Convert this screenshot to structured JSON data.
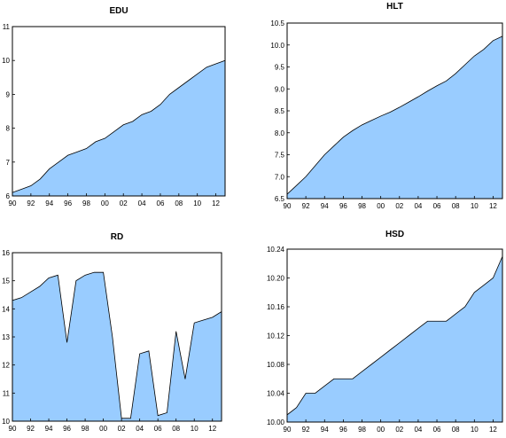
{
  "chart_data": [
    {
      "type": "area",
      "title": "EDU",
      "x": [
        1990,
        1991,
        1992,
        1993,
        1994,
        1995,
        1996,
        1997,
        1998,
        1999,
        2000,
        2001,
        2002,
        2003,
        2004,
        2005,
        2006,
        2007,
        2008,
        2009,
        2010,
        2011,
        2012,
        2013
      ],
      "values": [
        6.1,
        6.2,
        6.3,
        6.5,
        6.8,
        7.0,
        7.2,
        7.3,
        7.4,
        7.6,
        7.7,
        7.9,
        8.1,
        8.2,
        8.4,
        8.5,
        8.7,
        9.0,
        9.2,
        9.4,
        9.6,
        9.8,
        9.9,
        10.0
      ],
      "ylim": [
        6,
        11
      ],
      "yticks": [
        6,
        7,
        8,
        9,
        10,
        11
      ],
      "ytick_labels": [
        "6",
        "7",
        "8",
        "9",
        "10",
        "11"
      ],
      "xticks": [
        1990,
        1992,
        1994,
        1996,
        1998,
        2000,
        2002,
        2004,
        2006,
        2008,
        2010,
        2012
      ],
      "xtick_labels": [
        "90",
        "92",
        "94",
        "96",
        "98",
        "00",
        "02",
        "04",
        "06",
        "08",
        "10",
        "12"
      ],
      "xlim": [
        1990,
        2013
      ],
      "color": "#99ccff"
    },
    {
      "type": "area",
      "title": "HLT",
      "x": [
        1990,
        1991,
        1992,
        1993,
        1994,
        1995,
        1996,
        1997,
        1998,
        1999,
        2000,
        2001,
        2002,
        2003,
        2004,
        2005,
        2006,
        2007,
        2008,
        2009,
        2010,
        2011,
        2012,
        2013
      ],
      "values": [
        6.6,
        6.8,
        7.0,
        7.25,
        7.5,
        7.7,
        7.9,
        8.05,
        8.18,
        8.28,
        8.38,
        8.47,
        8.58,
        8.7,
        8.82,
        8.95,
        9.07,
        9.18,
        9.35,
        9.55,
        9.75,
        9.9,
        10.1,
        10.2
      ],
      "ylim": [
        6.5,
        10.5
      ],
      "yticks": [
        6.5,
        7.0,
        7.5,
        8.0,
        8.5,
        9.0,
        9.5,
        10.0,
        10.5
      ],
      "ytick_labels": [
        "6.5",
        "7.0",
        "7.5",
        "8.0",
        "8.5",
        "9.0",
        "9.5",
        "10.0",
        "10.5"
      ],
      "xticks": [
        1990,
        1992,
        1994,
        1996,
        1998,
        2000,
        2002,
        2004,
        2006,
        2008,
        2010,
        2012
      ],
      "xtick_labels": [
        "90",
        "92",
        "94",
        "96",
        "98",
        "00",
        "02",
        "04",
        "06",
        "08",
        "10",
        "12"
      ],
      "xlim": [
        1990,
        2013
      ],
      "color": "#99ccff"
    },
    {
      "type": "area",
      "title": "RD",
      "x": [
        1990,
        1991,
        1992,
        1993,
        1994,
        1995,
        1996,
        1997,
        1998,
        1999,
        2000,
        2001,
        2002,
        2003,
        2004,
        2005,
        2006,
        2007,
        2008,
        2009,
        2010,
        2011,
        2012,
        2013
      ],
      "values": [
        14.3,
        14.4,
        14.6,
        14.8,
        15.1,
        15.2,
        12.8,
        15.0,
        15.2,
        15.3,
        15.3,
        13.0,
        10.1,
        10.1,
        12.4,
        12.5,
        10.2,
        10.3,
        13.2,
        11.5,
        13.5,
        13.6,
        13.7,
        13.9
      ],
      "ylim": [
        10,
        16
      ],
      "yticks": [
        10,
        11,
        12,
        13,
        14,
        15,
        16
      ],
      "ytick_labels": [
        "10",
        "11",
        "12",
        "13",
        "14",
        "15",
        "16"
      ],
      "xticks": [
        1990,
        1992,
        1994,
        1996,
        1998,
        2000,
        2002,
        2004,
        2006,
        2008,
        2010,
        2012
      ],
      "xtick_labels": [
        "90",
        "92",
        "94",
        "96",
        "98",
        "00",
        "02",
        "04",
        "06",
        "08",
        "10",
        "12"
      ],
      "xlim": [
        1990,
        2013
      ],
      "color": "#99ccff"
    },
    {
      "type": "area",
      "title": "HSD",
      "x": [
        1990,
        1991,
        1992,
        1993,
        1994,
        1995,
        1996,
        1997,
        1998,
        1999,
        2000,
        2001,
        2002,
        2003,
        2004,
        2005,
        2006,
        2007,
        2008,
        2009,
        2010,
        2011,
        2012,
        2013
      ],
      "values": [
        10.01,
        10.02,
        10.04,
        10.04,
        10.05,
        10.06,
        10.06,
        10.06,
        10.07,
        10.08,
        10.09,
        10.1,
        10.11,
        10.12,
        10.13,
        10.14,
        10.14,
        10.14,
        10.15,
        10.16,
        10.18,
        10.19,
        10.2,
        10.23
      ],
      "ylim": [
        10.0,
        10.24
      ],
      "yticks": [
        10.0,
        10.04,
        10.08,
        10.12,
        10.16,
        10.2,
        10.24
      ],
      "ytick_labels": [
        "10.00",
        "10.04",
        "10.08",
        "10.12",
        "10.16",
        "10.20",
        "10.24"
      ],
      "xticks": [
        1990,
        1992,
        1994,
        1996,
        1998,
        2000,
        2002,
        2004,
        2006,
        2008,
        2010,
        2012
      ],
      "xtick_labels": [
        "90",
        "92",
        "94",
        "96",
        "98",
        "00",
        "02",
        "04",
        "06",
        "08",
        "10",
        "12"
      ],
      "xlim": [
        1990,
        2013
      ],
      "color": "#99ccff"
    }
  ]
}
